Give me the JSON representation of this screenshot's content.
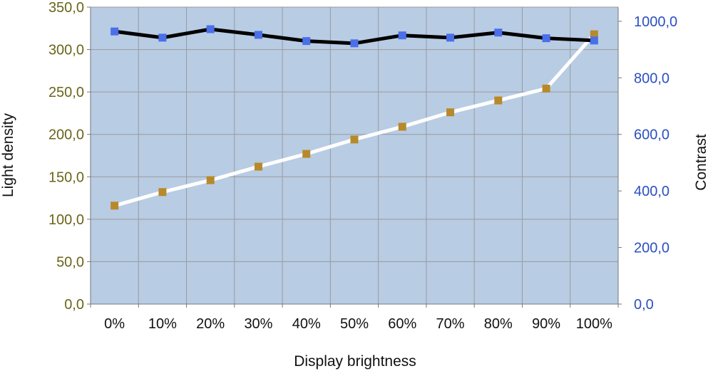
{
  "chart_data": {
    "type": "line",
    "xlabel": "Display brightness",
    "ylabel_left": "Light density",
    "ylabel_right": "Contrast",
    "categories": [
      "0%",
      "10%",
      "20%",
      "30%",
      "40%",
      "50%",
      "60%",
      "70%",
      "80%",
      "90%",
      "100%"
    ],
    "y_left": {
      "lim": [
        0,
        350
      ],
      "ticks": [
        0,
        50,
        100,
        150,
        200,
        250,
        300,
        350
      ],
      "tick_labels": [
        "0,0",
        "50,0",
        "100,0",
        "150,0",
        "200,0",
        "250,0",
        "300,0",
        "350,0"
      ]
    },
    "y_right": {
      "lim": [
        0,
        1050
      ],
      "ticks": [
        0,
        200,
        400,
        600,
        800,
        1000
      ],
      "tick_labels": [
        "0,0",
        "200,0",
        "400,0",
        "600,0",
        "800,0",
        "1000,0"
      ]
    },
    "grid": true,
    "series": [
      {
        "axis": "left",
        "line_color": "#ffffff",
        "marker_color": "#b8892a",
        "values": [
          116,
          132,
          146,
          162,
          177,
          194,
          209,
          226,
          240,
          254,
          318
        ]
      },
      {
        "axis": "right",
        "line_color": "#000000",
        "marker_color": "#4a6fe8",
        "values": [
          964,
          942,
          972,
          952,
          930,
          922,
          950,
          942,
          960,
          940,
          932
        ]
      }
    ],
    "colors": {
      "plot_background": "#b8cce4",
      "grid": "#9a9a9a",
      "left_tick": "#6b6419",
      "right_tick": "#2b4fc2"
    }
  }
}
